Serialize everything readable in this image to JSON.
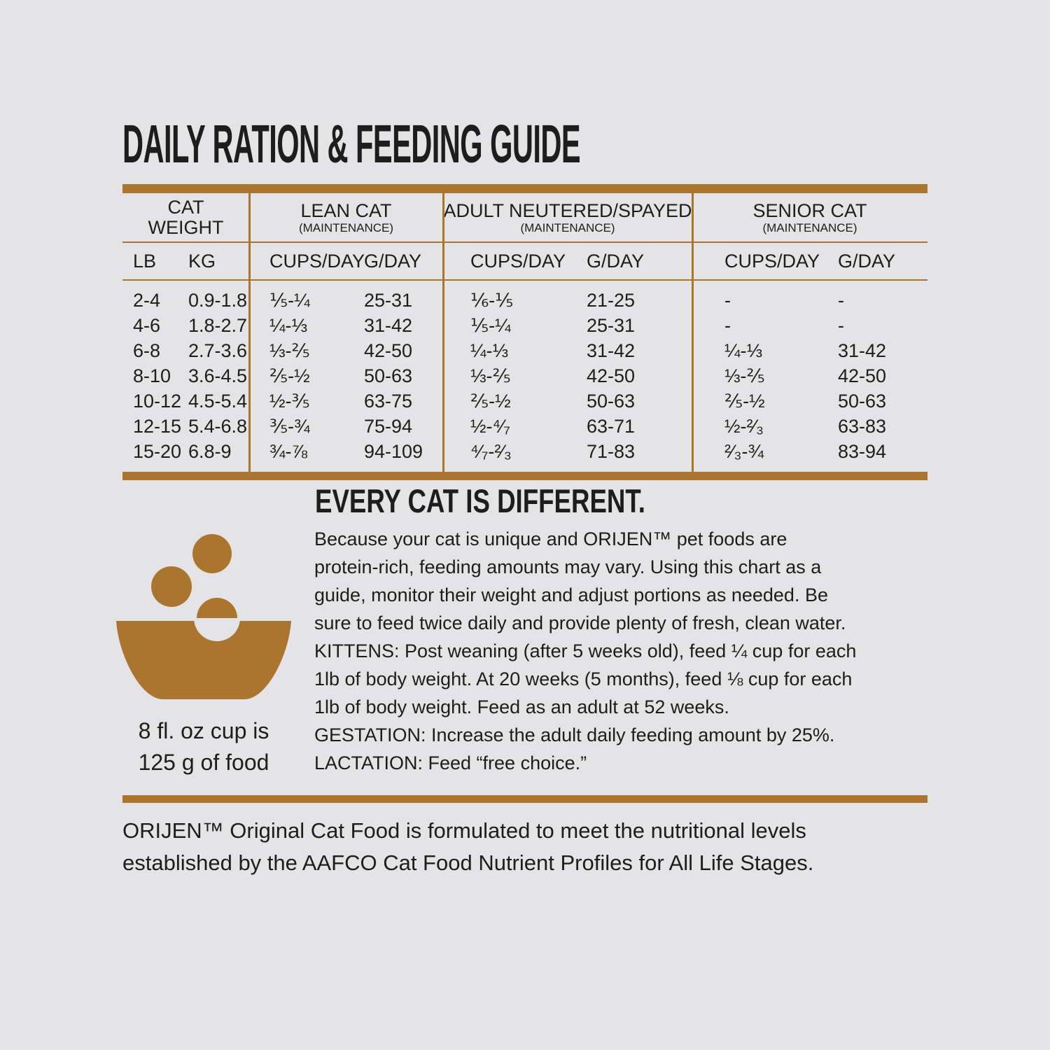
{
  "page": {
    "background": "#e4e4e6",
    "accent": "#aa762f",
    "text_color": "#1d1d1b"
  },
  "title": "DAILY RATION & FEEDING GUIDE",
  "table": {
    "groups": [
      {
        "label": "CAT\nWEIGHT",
        "sub": ""
      },
      {
        "label": "LEAN CAT",
        "sub": "(MAINTENANCE)"
      },
      {
        "label": "ADULT NEUTERED/SPAYED",
        "sub": "(MAINTENANCE)"
      },
      {
        "label": "SENIOR CAT",
        "sub": "(MAINTENANCE)"
      }
    ],
    "columns": [
      "LB",
      "KG",
      "CUPS/DAY",
      "G/DAY",
      "CUPS/DAY",
      "G/DAY",
      "CUPS/DAY",
      "G/DAY"
    ],
    "rows": [
      [
        "2-4",
        "0.9-1.8",
        "⅕-¼",
        "25-31",
        "⅙-⅕",
        "21-25",
        "-",
        "-"
      ],
      [
        "4-6",
        "1.8-2.7",
        "¼-⅓",
        "31-42",
        "⅕-¼",
        "25-31",
        "-",
        "-"
      ],
      [
        "6-8",
        "2.7-3.6",
        "⅓-⅖",
        "42-50",
        "¼-⅓",
        "31-42",
        "¼-⅓",
        "31-42"
      ],
      [
        "8-10",
        "3.6-4.5",
        "⅖-½",
        "50-63",
        "⅓-⅖",
        "42-50",
        "⅓-⅖",
        "42-50"
      ],
      [
        "10-12",
        "4.5-5.4",
        "½-⅗",
        "63-75",
        "⅖-½",
        "50-63",
        "⅖-½",
        "50-63"
      ],
      [
        "12-15",
        "5.4-6.8",
        "⅗-¾",
        "75-94",
        "½-⁴⁄₇",
        "63-71",
        "½-²⁄₃",
        "63-83"
      ],
      [
        "15-20",
        "6.8-9",
        "¾-⅞",
        "94-109",
        "⁴⁄₇-²⁄₃",
        "71-83",
        "²⁄₃-¾",
        "83-94"
      ]
    ]
  },
  "info": {
    "heading": "EVERY CAT IS DIFFERENT.",
    "body": "Because your cat is unique and ORIJEN™ pet foods are\nprotein-rich, feeding amounts may vary. Using this chart as a\nguide, monitor their weight and adjust portions as needed. Be\nsure to feed twice daily and provide plenty of fresh, clean water.\nKITTENS: Post weaning (after 5 weeks old), feed ¼ cup for each\n1lb of body weight. At 20 weeks (5 months), feed ⅛ cup for each\n1lb of body weight. Feed as an adult at 52 weeks.\nGESTATION: Increase the adult daily feeding amount by 25%.\nLACTATION: Feed “free choice.”",
    "cup_note": "8 fl. oz cup is\n125 g of food"
  },
  "footer": "ORIJEN™ Original Cat Food is formulated to meet the nutritional levels\nestablished by the AAFCO Cat Food Nutrient Profiles for All Life Stages."
}
